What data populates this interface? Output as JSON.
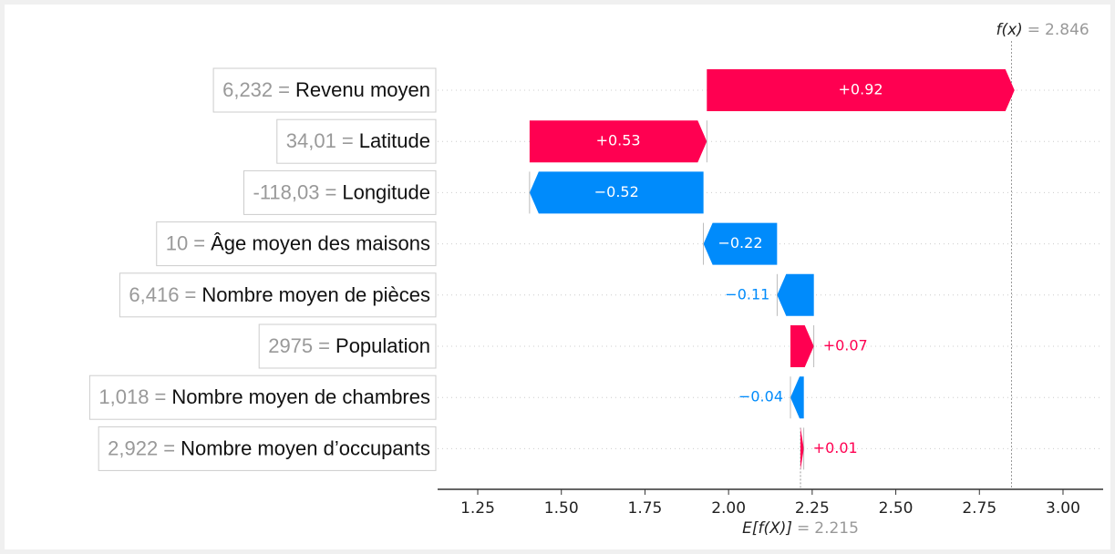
{
  "chart_data": {
    "type": "waterfall",
    "base_label": "E[f(X)]",
    "base_value": 2.215,
    "output_label": "f(x)",
    "output_value": 2.846,
    "equals": "=",
    "features": [
      {
        "value": "6,232",
        "name": "Revenu moyen"
      },
      {
        "value": "34,01",
        "name": "Latitude"
      },
      {
        "value": "-118,03",
        "name": "Longitude"
      },
      {
        "value": "10",
        "name": "Âge moyen des maisons"
      },
      {
        "value": "6,416",
        "name": "Nombre moyen de pièces"
      },
      {
        "value": "2975",
        "name": "Population"
      },
      {
        "value": "1,018",
        "name": "Nombre moyen de chambres"
      },
      {
        "value": "2,922",
        "name": "Nombre moyen d’occupants"
      }
    ],
    "values": [
      0.92,
      0.53,
      -0.52,
      -0.22,
      -0.11,
      0.07,
      -0.04,
      0.01
    ],
    "value_labels": [
      "+0.92",
      "+0.53",
      "−0.52",
      "−0.22",
      "−0.11",
      "+0.07",
      "−0.04",
      "+0.01"
    ],
    "positive_color": "#ff0051",
    "negative_color": "#008bfb",
    "xlim": [
      1.13,
      3.12
    ],
    "xticks": [
      1.25,
      {
        "value": 1.5,
        "label": "1.50"
      },
      1.75,
      {
        "value": 2.0,
        "label": "2.00"
      },
      2.25,
      {
        "value": 2.5,
        "label": "2.50"
      },
      2.75,
      {
        "value": 3.0,
        "label": "3.00"
      }
    ],
    "grid": true
  }
}
